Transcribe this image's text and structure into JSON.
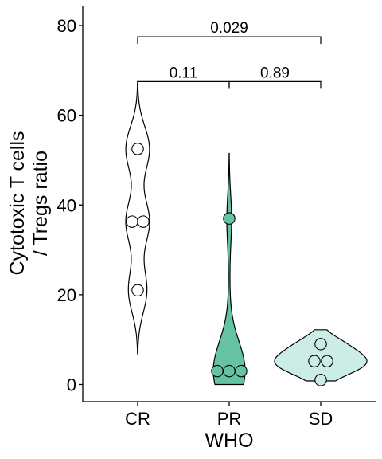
{
  "chart_data": {
    "type": "violin",
    "xlabel": "WHO",
    "ylabel_lines": [
      "Cytotoxic T cells",
      "/ Tregs ratio"
    ],
    "categories": [
      "CR",
      "PR",
      "SD"
    ],
    "ylim": [
      -4,
      84
    ],
    "yticks": [
      0,
      20,
      40,
      60,
      80
    ],
    "grid": false,
    "legend": "none",
    "groups": [
      {
        "name": "CR",
        "color": "#ffffff",
        "points": [
          52.5,
          36.3,
          36.3,
          21.0
        ],
        "violin_range": [
          6.8,
          67.5
        ]
      },
      {
        "name": "PR",
        "color": "#66c2a4",
        "points": [
          37.0,
          3.0,
          3.0,
          3.0
        ],
        "violin_range": [
          0.0,
          51.5
        ]
      },
      {
        "name": "SD",
        "color": "#ccece6",
        "points": [
          9.0,
          5.2,
          5.2,
          1.0
        ],
        "violin_range": [
          0.8,
          12.2
        ]
      }
    ],
    "comparisons": [
      {
        "groups": [
          "CR",
          "PR"
        ],
        "label": "0.11",
        "y": 67.5
      },
      {
        "groups": [
          "PR",
          "SD"
        ],
        "label": "0.89",
        "y": 67.5
      },
      {
        "groups": [
          "CR",
          "SD"
        ],
        "label": "0.029",
        "y": 77.5
      }
    ]
  }
}
